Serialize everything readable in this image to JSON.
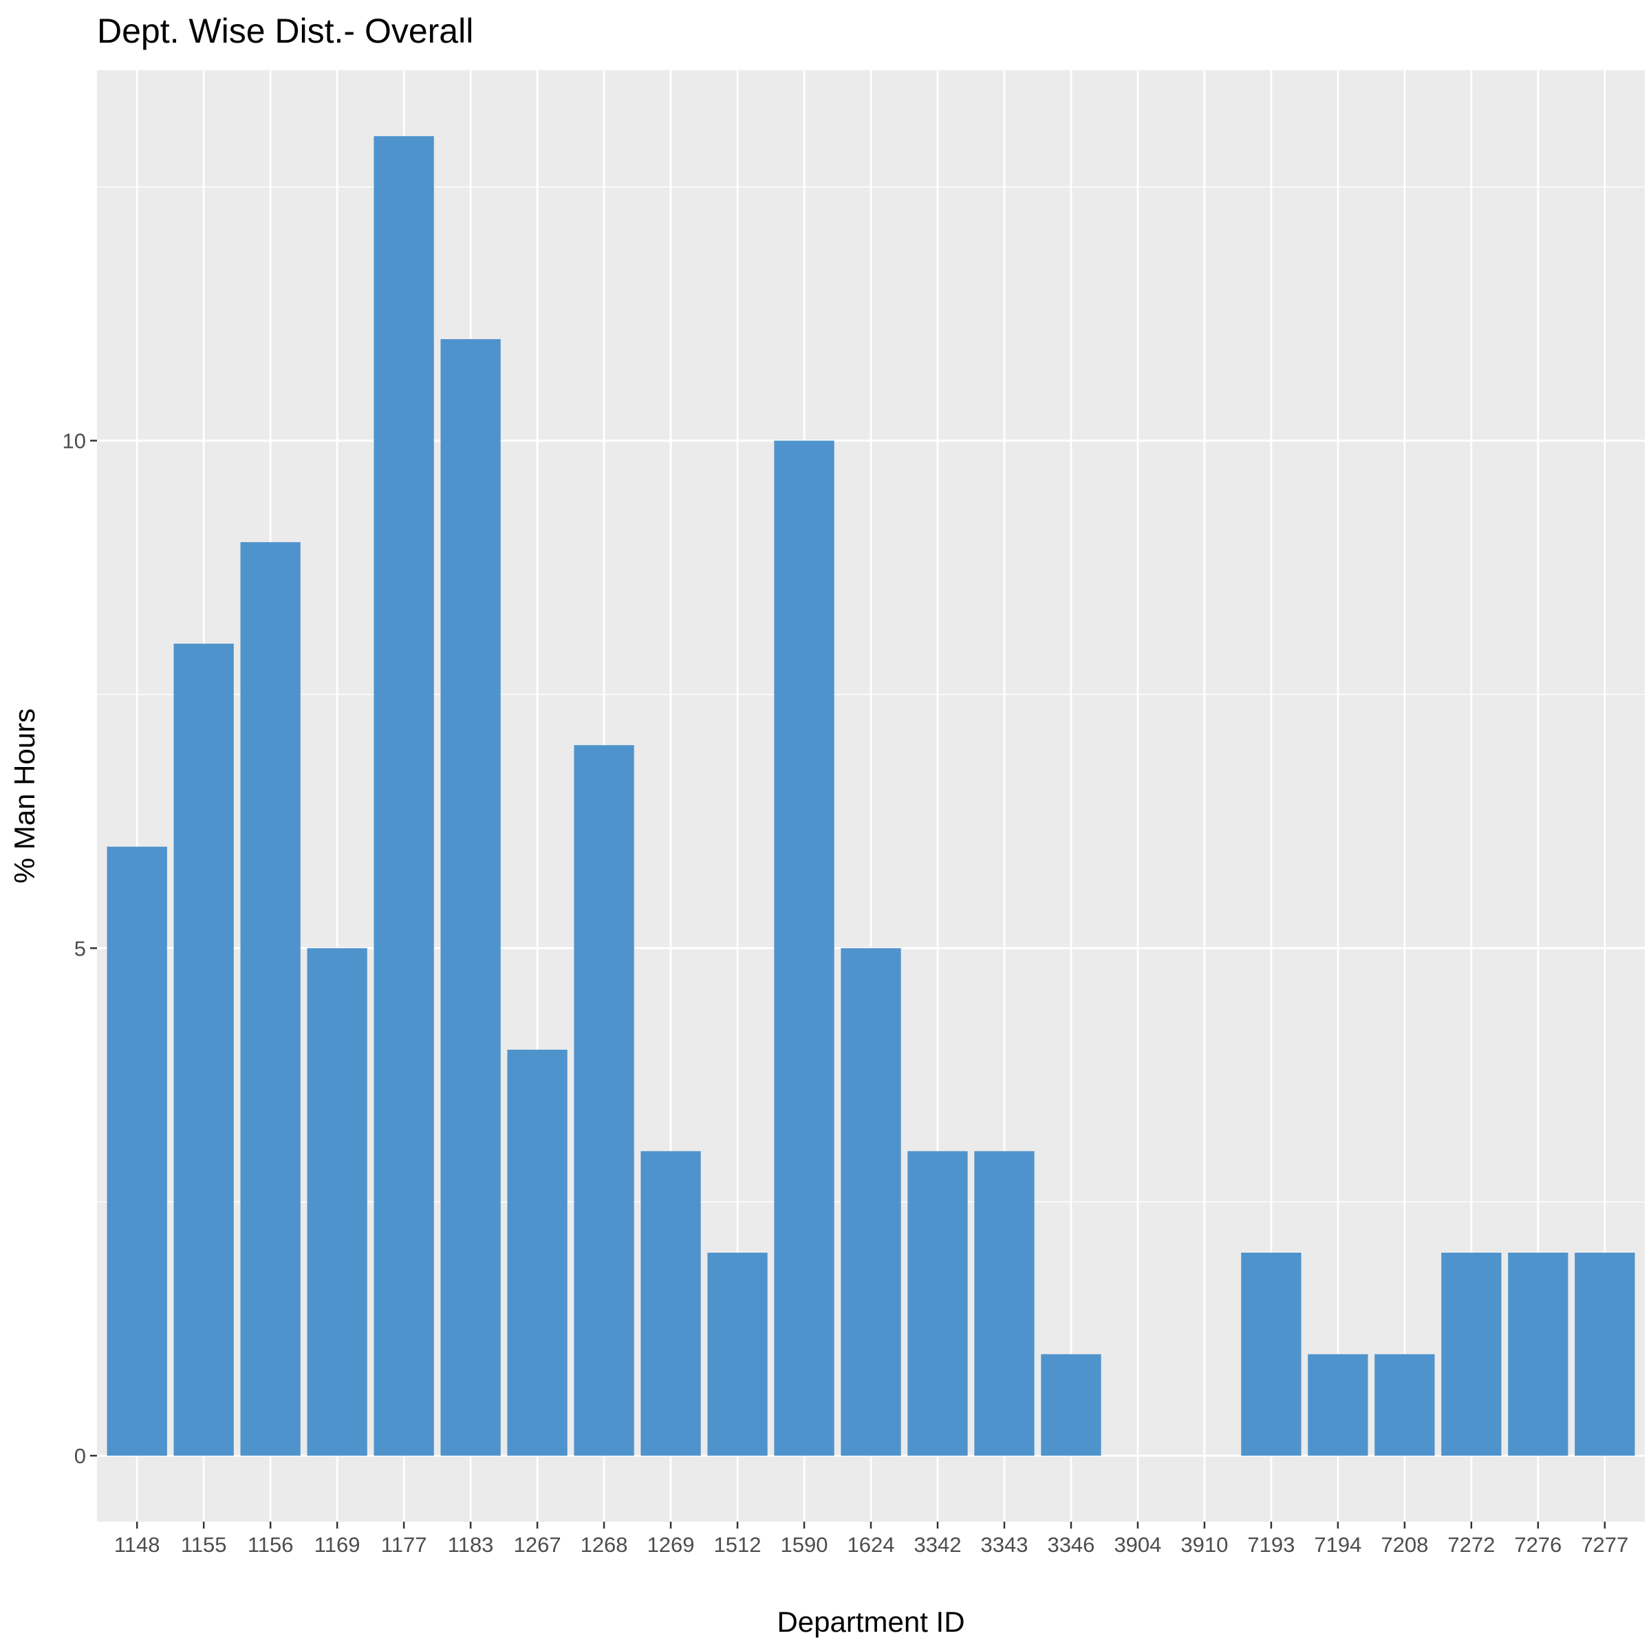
{
  "chart_data": {
    "type": "bar",
    "title": "Dept. Wise Dist.- Overall",
    "xlabel": "Department ID",
    "ylabel": "% Man Hours",
    "categories": [
      "1148",
      "1155",
      "1156",
      "1169",
      "1177",
      "1183",
      "1267",
      "1268",
      "1269",
      "1512",
      "1590",
      "1624",
      "3342",
      "3343",
      "3346",
      "3904",
      "3910",
      "7193",
      "7194",
      "7208",
      "7272",
      "7276",
      "7277"
    ],
    "values": [
      6,
      8,
      9,
      5,
      13,
      11,
      4,
      7,
      3,
      2,
      10,
      5,
      3,
      3,
      1,
      0,
      0,
      2,
      1,
      1,
      2,
      2,
      2
    ],
    "y_ticks": [
      0,
      5,
      10
    ],
    "ylim": [
      -0.65,
      13.65
    ],
    "grid": true,
    "legend": "none",
    "colors": {
      "bar": "#4f93cc",
      "panel_background": "#ebebeb",
      "grid": "#ffffff",
      "tick_text": "#4d4d4d"
    }
  }
}
